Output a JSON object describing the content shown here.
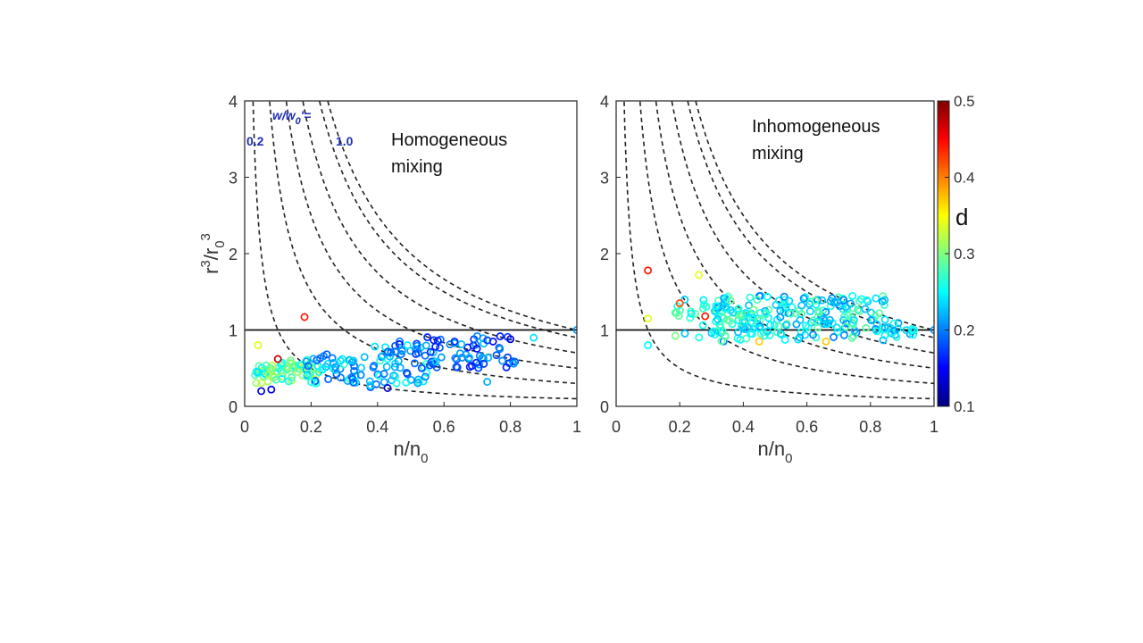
{
  "chart_data": [
    {
      "type": "scatter",
      "title": "",
      "xlabel": "n/n",
      "xlabel_sub": "0",
      "ylabel": "r",
      "ylabel_sup1": "3",
      "ylabel_mid": "/r",
      "ylabel_sub": "0",
      "ylabel_sup2": "3",
      "xlim": [
        0,
        1
      ],
      "ylim": [
        0,
        4
      ],
      "xticks": [
        "0",
        "0.2",
        "0.4",
        "0.6",
        "0.8",
        "1"
      ],
      "yticks": [
        "0",
        "1",
        "2",
        "3",
        "4"
      ],
      "annotation": [
        "Homogeneous",
        "mixing"
      ],
      "curve_label_head": "w/w",
      "curve_label_sub": "0",
      "curve_label_tail": "'=",
      "curve_label_low": "0.2",
      "curve_label_high": "1.0",
      "reference_line_y": 1,
      "curves_w": [
        0.1,
        0.3,
        0.5,
        0.7,
        0.9,
        1.0
      ],
      "seed": 7,
      "clusters": [
        {
          "n": 70,
          "x": [
            0.03,
            0.22
          ],
          "y": [
            0.3,
            0.8
          ],
          "d": [
            0.24,
            0.33
          ]
        },
        {
          "n": 90,
          "x": [
            0.18,
            0.55
          ],
          "y": [
            0.25,
            0.8
          ],
          "d": [
            0.18,
            0.27
          ]
        },
        {
          "n": 80,
          "x": [
            0.45,
            0.82
          ],
          "y": [
            0.5,
            0.95
          ],
          "d": [
            0.15,
            0.23
          ]
        }
      ],
      "points": [
        {
          "x": 0.18,
          "y": 1.17,
          "d": 0.44
        },
        {
          "x": 0.1,
          "y": 0.62,
          "d": 0.47
        },
        {
          "x": 0.05,
          "y": 0.2,
          "d": 0.14
        },
        {
          "x": 0.08,
          "y": 0.22,
          "d": 0.15
        },
        {
          "x": 0.43,
          "y": 0.24,
          "d": 0.13
        },
        {
          "x": 0.73,
          "y": 0.32,
          "d": 0.22
        },
        {
          "x": 0.87,
          "y": 0.9,
          "d": 0.24
        },
        {
          "x": 1.0,
          "y": 1.0,
          "d": 0.21
        },
        {
          "x": 0.04,
          "y": 0.8,
          "d": 0.34
        },
        {
          "x": 0.8,
          "y": 0.88,
          "d": 0.13
        }
      ]
    },
    {
      "type": "scatter",
      "title": "",
      "xlabel": "n/n",
      "xlabel_sub": "0",
      "xlim": [
        0,
        1
      ],
      "ylim": [
        0,
        4
      ],
      "xticks": [
        "0",
        "0.2",
        "0.4",
        "0.6",
        "0.8",
        "1"
      ],
      "yticks": [
        "0",
        "1",
        "2",
        "3",
        "4"
      ],
      "annotation": [
        "Inhomogeneous",
        "mixing"
      ],
      "reference_line_y": 1,
      "curves_w": [
        0.1,
        0.3,
        0.5,
        0.7,
        0.9,
        1.0
      ],
      "seed": 11,
      "clusters": [
        {
          "n": 200,
          "x": [
            0.3,
            0.85
          ],
          "y": [
            0.85,
            1.45
          ],
          "d": [
            0.2,
            0.29
          ]
        },
        {
          "n": 40,
          "x": [
            0.18,
            0.45
          ],
          "y": [
            0.85,
            1.4
          ],
          "d": [
            0.22,
            0.3
          ]
        },
        {
          "n": 20,
          "x": [
            0.8,
            0.95
          ],
          "y": [
            0.9,
            1.12
          ],
          "d": [
            0.2,
            0.27
          ]
        }
      ],
      "points": [
        {
          "x": 0.1,
          "y": 1.78,
          "d": 0.44
        },
        {
          "x": 0.2,
          "y": 1.35,
          "d": 0.42
        },
        {
          "x": 0.26,
          "y": 1.72,
          "d": 0.34
        },
        {
          "x": 0.28,
          "y": 1.18,
          "d": 0.44
        },
        {
          "x": 0.1,
          "y": 0.8,
          "d": 0.25
        },
        {
          "x": 0.1,
          "y": 1.15,
          "d": 0.34
        },
        {
          "x": 0.45,
          "y": 0.85,
          "d": 0.37
        },
        {
          "x": 0.66,
          "y": 0.85,
          "d": 0.37
        },
        {
          "x": 1.0,
          "y": 1.0,
          "d": 0.21
        }
      ]
    }
  ],
  "colorbar": {
    "label": "d",
    "min": 0.1,
    "max": 0.5,
    "ticks": [
      "0.1",
      "0.2",
      "0.3",
      "0.4",
      "0.5"
    ]
  },
  "colors": {
    "axis": "#222222",
    "tick_text": "#333333",
    "curve_label": "#1f2fb4",
    "jet": [
      "#00007f",
      "#0000ff",
      "#007fff",
      "#00ffff",
      "#7fff7f",
      "#ffff00",
      "#ff7f00",
      "#ff0000",
      "#7f0000"
    ]
  }
}
